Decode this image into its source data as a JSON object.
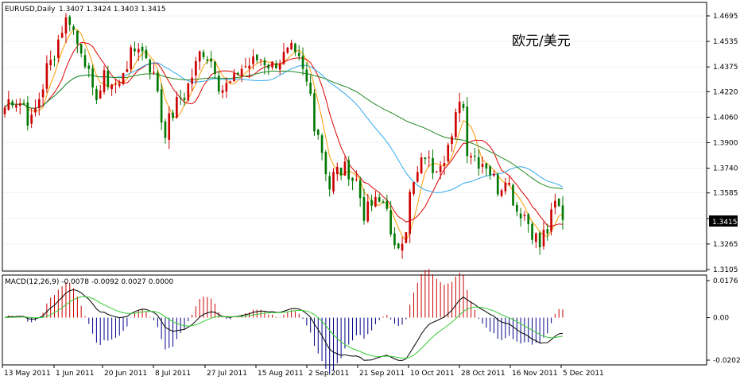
{
  "header": {
    "symbol": "EURUSD,Daily",
    "ohlc": "1.3407 1.3424 1.3403 1.3415"
  },
  "overlay_title": "欧元/美元",
  "price_badge": "1.3415",
  "macd_header": "MACD(12,26,9) -0.0078 -0.0092 0.0027 0.0000",
  "colors": {
    "bull": "#cc0000",
    "bear": "#007700",
    "ma_fast": "#ff9900",
    "ma_red": "#dd0000",
    "ma_blue": "#33aaee",
    "ma_green": "#228822",
    "macd_pos": "#cc0000",
    "macd_neg": "#000088",
    "macd_line": "#000000",
    "signal_line": "#33cc33"
  },
  "chart_data": [
    {
      "type": "candlestick",
      "title": "EURUSD,Daily",
      "xlabel": "",
      "ylabel": "",
      "ylim": [
        1.3105,
        1.4775
      ],
      "y_ticks": [
        "1.4695",
        "1.4535",
        "1.4375",
        "1.4220",
        "1.4060",
        "1.3900",
        "1.3740",
        "1.3585",
        "1.3425",
        "1.3265",
        "1.3105"
      ],
      "x_ticks": [
        "13 May 2011",
        "1 Jun 2011",
        "20 Jun 2011",
        "8 Jul 2011",
        "27 Jul 2011",
        "15 Aug 2011",
        "2 Sep 2011",
        "21 Sep 2011",
        "10 Oct 2011",
        "28 Oct 2011",
        "16 Nov 2011",
        "5 Dec 2011"
      ],
      "last_price": 1.3415,
      "anchors": [
        {
          "date": "2011-05-13",
          "close": 1.412
        },
        {
          "date": "2011-05-17",
          "close": 1.418
        },
        {
          "date": "2011-05-20",
          "close": 1.414
        },
        {
          "date": "2011-05-24",
          "close": 1.403
        },
        {
          "date": "2011-05-27",
          "close": 1.426
        },
        {
          "date": "2011-05-31",
          "close": 1.44
        },
        {
          "date": "2011-06-03",
          "close": 1.462
        },
        {
          "date": "2011-06-07",
          "close": 1.468
        },
        {
          "date": "2011-06-09",
          "close": 1.452
        },
        {
          "date": "2011-06-13",
          "close": 1.443
        },
        {
          "date": "2011-06-15",
          "close": 1.419
        },
        {
          "date": "2011-06-20",
          "close": 1.43
        },
        {
          "date": "2011-06-24",
          "close": 1.425
        },
        {
          "date": "2011-06-28",
          "close": 1.44
        },
        {
          "date": "2011-07-01",
          "close": 1.452
        },
        {
          "date": "2011-07-05",
          "close": 1.445
        },
        {
          "date": "2011-07-08",
          "close": 1.424
        },
        {
          "date": "2011-07-12",
          "close": 1.398
        },
        {
          "date": "2011-07-15",
          "close": 1.414
        },
        {
          "date": "2011-07-19",
          "close": 1.42
        },
        {
          "date": "2011-07-22",
          "close": 1.438
        },
        {
          "date": "2011-07-26",
          "close": 1.448
        },
        {
          "date": "2011-07-29",
          "close": 1.438
        },
        {
          "date": "2011-08-02",
          "close": 1.424
        },
        {
          "date": "2011-08-05",
          "close": 1.428
        },
        {
          "date": "2011-08-09",
          "close": 1.437
        },
        {
          "date": "2011-08-12",
          "close": 1.44
        },
        {
          "date": "2011-08-16",
          "close": 1.443
        },
        {
          "date": "2011-08-19",
          "close": 1.438
        },
        {
          "date": "2011-08-23",
          "close": 1.442
        },
        {
          "date": "2011-08-26",
          "close": 1.447
        },
        {
          "date": "2011-08-30",
          "close": 1.44
        },
        {
          "date": "2011-09-02",
          "close": 1.42
        },
        {
          "date": "2011-09-06",
          "close": 1.397
        },
        {
          "date": "2011-09-09",
          "close": 1.362
        },
        {
          "date": "2011-09-13",
          "close": 1.372
        },
        {
          "date": "2011-09-16",
          "close": 1.373
        },
        {
          "date": "2011-09-20",
          "close": 1.366
        },
        {
          "date": "2011-09-22",
          "close": 1.346
        },
        {
          "date": "2011-09-26",
          "close": 1.351
        },
        {
          "date": "2011-09-30",
          "close": 1.353
        },
        {
          "date": "2011-10-04",
          "close": 1.321
        },
        {
          "date": "2011-10-07",
          "close": 1.338
        },
        {
          "date": "2011-10-11",
          "close": 1.363
        },
        {
          "date": "2011-10-14",
          "close": 1.383
        },
        {
          "date": "2011-10-18",
          "close": 1.375
        },
        {
          "date": "2011-10-21",
          "close": 1.383
        },
        {
          "date": "2011-10-25",
          "close": 1.39
        },
        {
          "date": "2011-10-27",
          "close": 1.42
        },
        {
          "date": "2011-10-31",
          "close": 1.387
        },
        {
          "date": "2011-11-03",
          "close": 1.379
        },
        {
          "date": "2011-11-07",
          "close": 1.377
        },
        {
          "date": "2011-11-10",
          "close": 1.362
        },
        {
          "date": "2011-11-14",
          "close": 1.371
        },
        {
          "date": "2011-11-17",
          "close": 1.348
        },
        {
          "date": "2011-11-21",
          "close": 1.345
        },
        {
          "date": "2011-11-25",
          "close": 1.325
        },
        {
          "date": "2011-11-29",
          "close": 1.335
        },
        {
          "date": "2011-12-01",
          "close": 1.351
        },
        {
          "date": "2011-12-05",
          "close": 1.3415
        }
      ],
      "moving_averages": [
        {
          "name": "",
          "period": 5,
          "color_key": "ma_fast"
        },
        {
          "name": "",
          "period": 10,
          "color_key": "ma_red"
        },
        {
          "name": "",
          "period": 30,
          "color_key": "ma_blue"
        },
        {
          "name": "",
          "period": 60,
          "color_key": "ma_green"
        }
      ]
    },
    {
      "type": "macd",
      "title": "MACD(12,26,9) -0.0078 -0.0092 0.0027 0.0000",
      "ylim": [
        -0.0215,
        0.0185
      ],
      "y_ticks": [
        "0.0176",
        "0.00",
        "-0.0202"
      ],
      "fast": 12,
      "slow": 26,
      "signal": 9
    }
  ]
}
